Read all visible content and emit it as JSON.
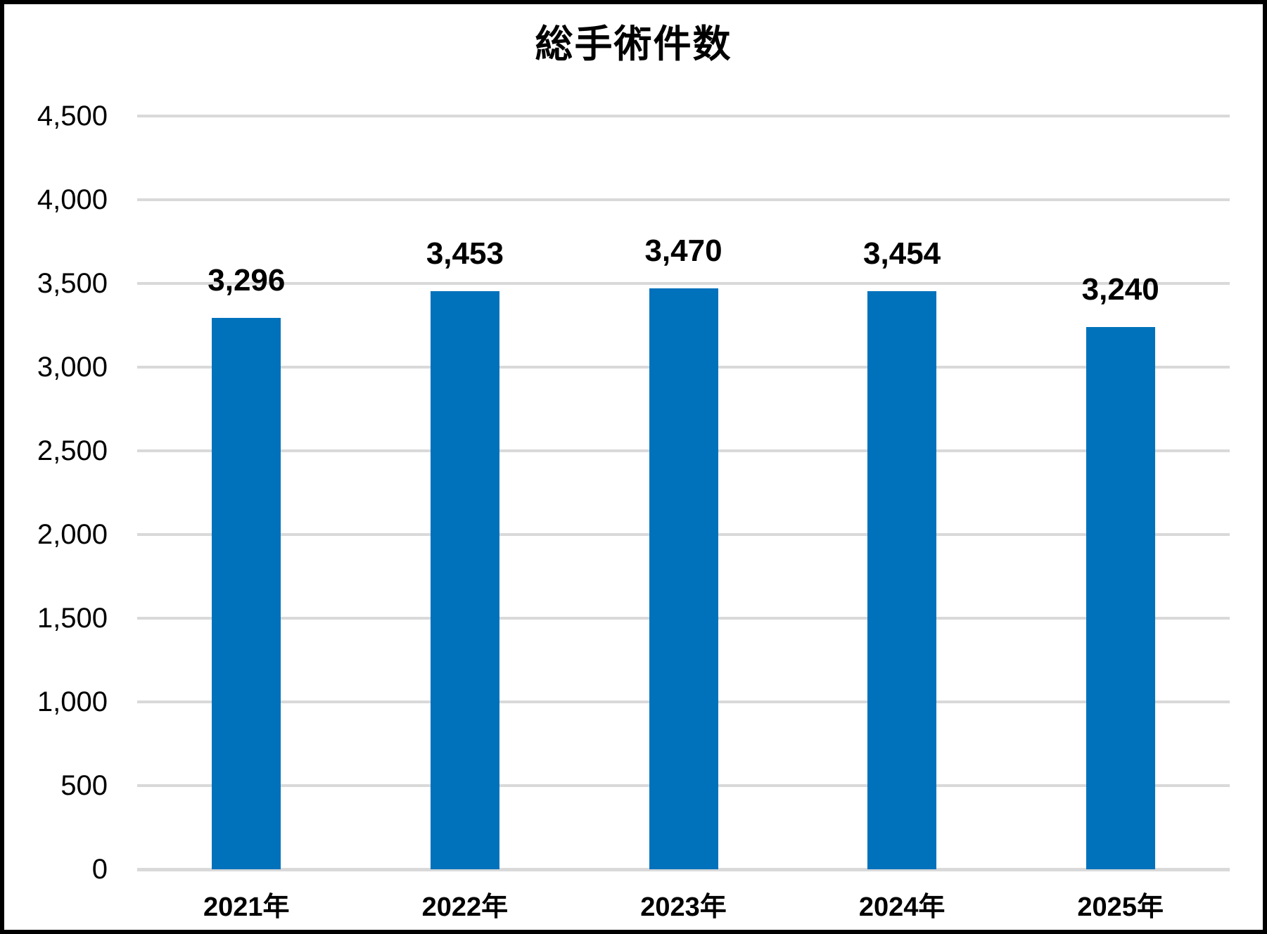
{
  "chart_data": {
    "type": "bar",
    "title": "総手術件数",
    "categories": [
      "2021年",
      "2022年",
      "2023年",
      "2024年",
      "2025年"
    ],
    "values": [
      3296,
      3453,
      3470,
      3454,
      3240
    ],
    "value_labels": [
      "3,296",
      "3,453",
      "3,470",
      "3,454",
      "3,240"
    ],
    "xlabel": "",
    "ylabel": "",
    "ylim": [
      0,
      4500
    ],
    "ytick_step": 500,
    "ytick_labels": [
      "0",
      "500",
      "1,000",
      "1,500",
      "2,000",
      "2,500",
      "3,000",
      "3,500",
      "4,000",
      "4,500"
    ],
    "grid": true,
    "legend": "none",
    "colors": {
      "bar": "#0072BC",
      "gridline": "#D9D9D9",
      "axis_line": "#D9D9D9",
      "text": "#000000",
      "background": "#FFFFFF",
      "border": "#000000"
    }
  }
}
